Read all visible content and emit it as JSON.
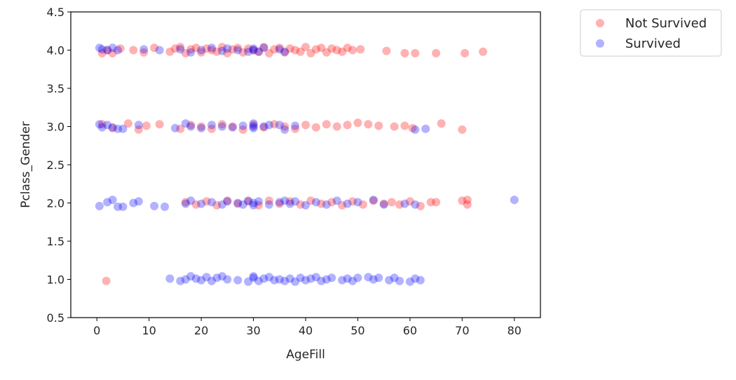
{
  "chart_data": {
    "type": "scatter",
    "title": "",
    "xlabel": "AgeFill",
    "ylabel": "Pclass_Gender",
    "xlim": [
      -5,
      85
    ],
    "ylim": [
      0.5,
      4.5
    ],
    "xticks": [
      "0",
      "10",
      "20",
      "30",
      "40",
      "50",
      "60",
      "70",
      "80"
    ],
    "yticks": [
      "0.5",
      "1.0",
      "1.5",
      "2.0",
      "2.5",
      "3.0",
      "3.5",
      "4.0",
      "4.5"
    ],
    "grid": false,
    "legend_position": "outside-top-right",
    "series": [
      {
        "name": "Not Survived",
        "color": "#ff0000",
        "alpha": 0.3,
        "points": [
          [
            1,
            3.96
          ],
          [
            2,
            4.0
          ],
          [
            3,
            3.96
          ],
          [
            4.5,
            4.02
          ],
          [
            7,
            4.0
          ],
          [
            9,
            3.97
          ],
          [
            11,
            4.03
          ],
          [
            14,
            3.98
          ],
          [
            15,
            4.02
          ],
          [
            16,
            4.04
          ],
          [
            17,
            3.96
          ],
          [
            18,
            4.01
          ],
          [
            19,
            4.03
          ],
          [
            20,
            3.97
          ],
          [
            21,
            4.02
          ],
          [
            22,
            4.0
          ],
          [
            23,
            3.98
          ],
          [
            24,
            4.04
          ],
          [
            25,
            3.96
          ],
          [
            26,
            4.01
          ],
          [
            27,
            4.03
          ],
          [
            28,
            3.97
          ],
          [
            29,
            4.02
          ],
          [
            30,
            4.0
          ],
          [
            31,
            3.98
          ],
          [
            32,
            4.04
          ],
          [
            33,
            3.96
          ],
          [
            34,
            4.01
          ],
          [
            35,
            4.03
          ],
          [
            36,
            3.97
          ],
          [
            37,
            4.02
          ],
          [
            38,
            4.0
          ],
          [
            39,
            3.98
          ],
          [
            40,
            4.04
          ],
          [
            41,
            3.96
          ],
          [
            42,
            4.01
          ],
          [
            43,
            4.03
          ],
          [
            44,
            3.97
          ],
          [
            45,
            4.02
          ],
          [
            46,
            4.0
          ],
          [
            47,
            3.98
          ],
          [
            48,
            4.03
          ],
          [
            49,
            4.0
          ],
          [
            50.5,
            4.01
          ],
          [
            55.5,
            3.99
          ],
          [
            59,
            3.96
          ],
          [
            61,
            3.96
          ],
          [
            65,
            3.96
          ],
          [
            70.5,
            3.96
          ],
          [
            74,
            3.98
          ],
          [
            1,
            3.03
          ],
          [
            3,
            2.98
          ],
          [
            6,
            3.04
          ],
          [
            8,
            2.96
          ],
          [
            9.5,
            3.01
          ],
          [
            12,
            3.03
          ],
          [
            16,
            2.97
          ],
          [
            18,
            3.02
          ],
          [
            20,
            3.0
          ],
          [
            22,
            2.97
          ],
          [
            24,
            3.03
          ],
          [
            26,
            3.0
          ],
          [
            28,
            2.96
          ],
          [
            30,
            3.02
          ],
          [
            32,
            2.99
          ],
          [
            34,
            3.03
          ],
          [
            36,
            3.0
          ],
          [
            38,
            2.97
          ],
          [
            40,
            3.02
          ],
          [
            42,
            2.99
          ],
          [
            44,
            3.03
          ],
          [
            46,
            3.0
          ],
          [
            48,
            3.02
          ],
          [
            50,
            3.05
          ],
          [
            52,
            3.03
          ],
          [
            54,
            3.01
          ],
          [
            57,
            3.0
          ],
          [
            59,
            3.01
          ],
          [
            60.5,
            2.98
          ],
          [
            66,
            3.04
          ],
          [
            70,
            2.96
          ],
          [
            1.8,
            0.98
          ],
          [
            17,
            2.01
          ],
          [
            19,
            1.98
          ],
          [
            21,
            2.02
          ],
          [
            23,
            1.97
          ],
          [
            25,
            2.03
          ],
          [
            27,
            1.99
          ],
          [
            29,
            2.02
          ],
          [
            31,
            1.97
          ],
          [
            33,
            2.03
          ],
          [
            35,
            1.99
          ],
          [
            37,
            2.02
          ],
          [
            39,
            1.98
          ],
          [
            41,
            2.03
          ],
          [
            43,
            1.99
          ],
          [
            45,
            2.01
          ],
          [
            47,
            1.97
          ],
          [
            49,
            2.02
          ],
          [
            51,
            1.98
          ],
          [
            53,
            2.03
          ],
          [
            55,
            1.99
          ],
          [
            56.5,
            2.01
          ],
          [
            58,
            1.98
          ],
          [
            60,
            2.02
          ],
          [
            62,
            1.96
          ],
          [
            64,
            2.01
          ],
          [
            65,
            2.01
          ],
          [
            70,
            2.03
          ],
          [
            71,
            1.98
          ],
          [
            71,
            2.04
          ]
        ]
      },
      {
        "name": "Survived",
        "color": "#0000ff",
        "alpha": 0.3,
        "points": [
          [
            0.5,
            4.03
          ],
          [
            1,
            4.01
          ],
          [
            2,
            4.0
          ],
          [
            3,
            4.03
          ],
          [
            4,
            4.0
          ],
          [
            9,
            4.01
          ],
          [
            12,
            4.0
          ],
          [
            16,
            4.01
          ],
          [
            18,
            3.97
          ],
          [
            20,
            4.0
          ],
          [
            22,
            4.03
          ],
          [
            24,
            3.99
          ],
          [
            25,
            4.02
          ],
          [
            27,
            4.0
          ],
          [
            29,
            3.98
          ],
          [
            30,
            4.02
          ],
          [
            30,
            4.0
          ],
          [
            31,
            3.98
          ],
          [
            32,
            4.03
          ],
          [
            35,
            4.01
          ],
          [
            36,
            3.98
          ],
          [
            0.5,
            3.03
          ],
          [
            1,
            2.99
          ],
          [
            2,
            3.02
          ],
          [
            3,
            2.99
          ],
          [
            4,
            2.97
          ],
          [
            5,
            2.97
          ],
          [
            8,
            3.02
          ],
          [
            15,
            2.98
          ],
          [
            17,
            3.04
          ],
          [
            18,
            3.0
          ],
          [
            20,
            2.98
          ],
          [
            22,
            3.02
          ],
          [
            24,
            3.0
          ],
          [
            26,
            2.99
          ],
          [
            28,
            3.01
          ],
          [
            30,
            3.04
          ],
          [
            30,
            3.0
          ],
          [
            30,
            2.98
          ],
          [
            32,
            3.0
          ],
          [
            33,
            3.02
          ],
          [
            35,
            3.02
          ],
          [
            36,
            2.96
          ],
          [
            38,
            3.01
          ],
          [
            61,
            2.96
          ],
          [
            63,
            2.97
          ],
          [
            0.5,
            1.96
          ],
          [
            2,
            2.01
          ],
          [
            3,
            2.04
          ],
          [
            4,
            1.95
          ],
          [
            5,
            1.95
          ],
          [
            7,
            2.0
          ],
          [
            8,
            2.02
          ],
          [
            11,
            1.96
          ],
          [
            13,
            1.95
          ],
          [
            17,
            1.99
          ],
          [
            18,
            2.03
          ],
          [
            20,
            1.99
          ],
          [
            22,
            2.01
          ],
          [
            24,
            1.98
          ],
          [
            25,
            2.02
          ],
          [
            27,
            2.0
          ],
          [
            28,
            1.98
          ],
          [
            29,
            2.03
          ],
          [
            30,
            2.0
          ],
          [
            30,
            1.97
          ],
          [
            31,
            2.02
          ],
          [
            33,
            1.98
          ],
          [
            35,
            2.01
          ],
          [
            36,
            2.03
          ],
          [
            37,
            1.99
          ],
          [
            38,
            2.02
          ],
          [
            40,
            1.97
          ],
          [
            42,
            2.01
          ],
          [
            44,
            1.98
          ],
          [
            46,
            2.03
          ],
          [
            48,
            1.99
          ],
          [
            50,
            2.01
          ],
          [
            53,
            2.04
          ],
          [
            55,
            1.98
          ],
          [
            59,
            1.99
          ],
          [
            61,
            1.98
          ],
          [
            80,
            2.04
          ],
          [
            14,
            1.01
          ],
          [
            16,
            0.98
          ],
          [
            17,
            1.0
          ],
          [
            18,
            1.04
          ],
          [
            19,
            1.01
          ],
          [
            20,
            0.99
          ],
          [
            21,
            1.03
          ],
          [
            22,
            0.98
          ],
          [
            23,
            1.02
          ],
          [
            24,
            1.04
          ],
          [
            25,
            1.0
          ],
          [
            27,
            0.99
          ],
          [
            29,
            0.97
          ],
          [
            30,
            1.02
          ],
          [
            30,
            1.04
          ],
          [
            31,
            0.98
          ],
          [
            32,
            1.01
          ],
          [
            33,
            1.03
          ],
          [
            34,
            0.99
          ],
          [
            35,
            1.0
          ],
          [
            36,
            0.98
          ],
          [
            37,
            1.01
          ],
          [
            38,
            0.97
          ],
          [
            39,
            1.02
          ],
          [
            40,
            0.99
          ],
          [
            41,
            1.01
          ],
          [
            42,
            1.03
          ],
          [
            43,
            0.98
          ],
          [
            44,
            1.0
          ],
          [
            45,
            1.02
          ],
          [
            47,
            0.99
          ],
          [
            48,
            1.01
          ],
          [
            49,
            0.98
          ],
          [
            50,
            1.02
          ],
          [
            52,
            1.03
          ],
          [
            53,
            1.0
          ],
          [
            54,
            1.02
          ],
          [
            56,
            0.99
          ],
          [
            57,
            1.02
          ],
          [
            58,
            0.98
          ],
          [
            60,
            0.97
          ],
          [
            61,
            1.01
          ],
          [
            62,
            0.99
          ]
        ]
      }
    ]
  }
}
